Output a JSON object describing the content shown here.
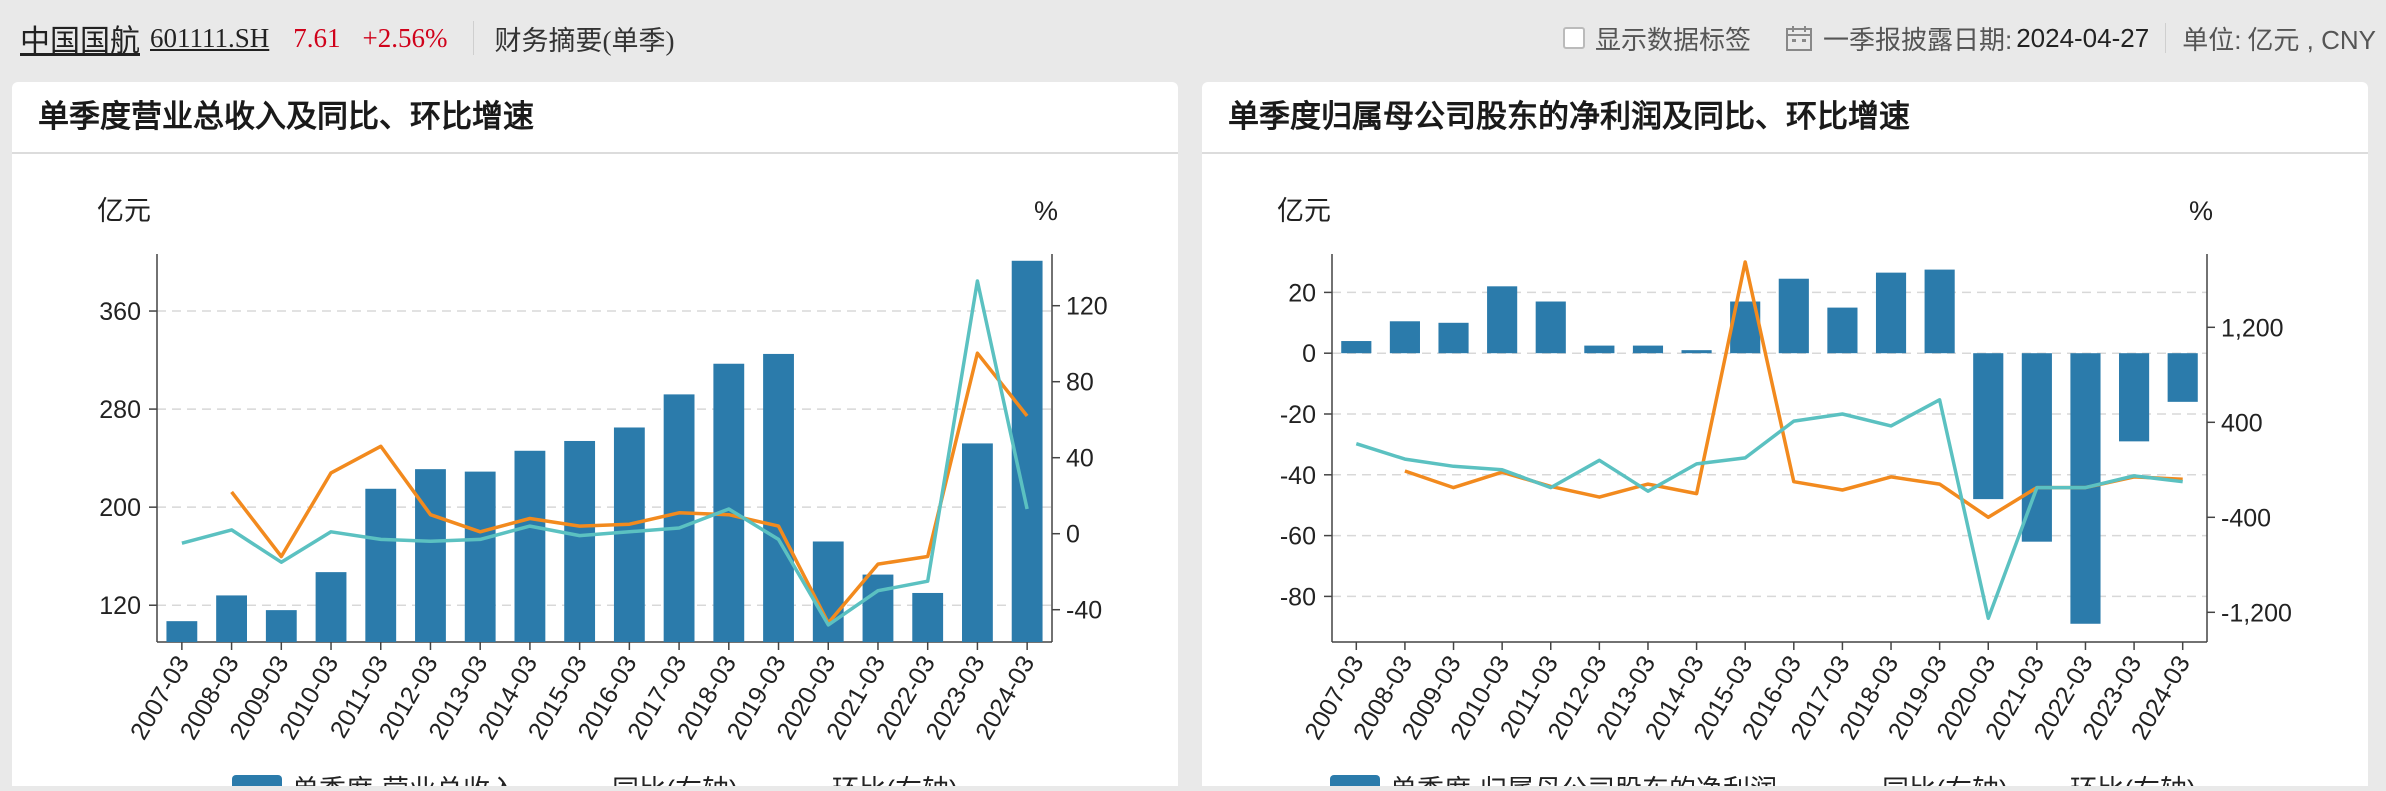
{
  "header": {
    "stock_name": "中国国航",
    "stock_code": "601111.SH",
    "price": "7.61",
    "change": "+2.56%",
    "summary": "财务摘要(单季)",
    "show_labels": "显示数据标签",
    "disclosure_label": "一季报披露日期:",
    "disclosure_date": "2024-04-27",
    "unit_label": "单位:",
    "unit_value": "亿元 , CNY"
  },
  "colors": {
    "bar": "#2b7bab",
    "yoy": "#f28a1e",
    "qoq": "#5bc1c1"
  },
  "chart_data": [
    {
      "type": "bar",
      "title": "单季度营业总收入及同比、环比增速",
      "left_axis_unit": "亿元",
      "right_axis_unit": "%",
      "categories": [
        "2007-03",
        "2008-03",
        "2009-03",
        "2010-03",
        "2011-03",
        "2012-03",
        "2013-03",
        "2014-03",
        "2015-03",
        "2016-03",
        "2017-03",
        "2018-03",
        "2019-03",
        "2020-03",
        "2021-03",
        "2022-03",
        "2023-03",
        "2024-03"
      ],
      "ylim_left": [
        90,
        400
      ],
      "yticks_left": [
        120,
        200,
        280,
        360
      ],
      "ylim_right": [
        -57,
        143
      ],
      "yticks_right": [
        -40,
        0,
        40,
        80,
        120
      ],
      "grid": true,
      "legend_position": "bottom",
      "series": [
        {
          "name": "单季度·营业总收入",
          "axis": "left",
          "type": "bar",
          "values": [
            107,
            128,
            116,
            147,
            215,
            231,
            229,
            246,
            254,
            265,
            292,
            317,
            325,
            172,
            145,
            130,
            252,
            401
          ]
        },
        {
          "name": "同比(右轴)",
          "axis": "right",
          "type": "line",
          "color_key": "yoy",
          "values": [
            null,
            22,
            -12,
            32,
            46,
            10,
            1,
            8,
            4,
            5,
            11,
            10,
            4,
            -47,
            -16,
            -12,
            95,
            62
          ]
        },
        {
          "name": "环比(右轴)",
          "axis": "right",
          "type": "line",
          "color_key": "qoq",
          "values": [
            -5,
            2,
            -15,
            1,
            -3,
            -4,
            -3,
            4,
            -1,
            1,
            3,
            13,
            -3,
            -48,
            -30,
            -25,
            133,
            13
          ]
        }
      ]
    },
    {
      "type": "bar",
      "title": "单季度归属母公司股东的净利润及同比、环比增速",
      "left_axis_unit": "亿元",
      "right_axis_unit": "%",
      "categories": [
        "2007-03",
        "2008-03",
        "2009-03",
        "2010-03",
        "2011-03",
        "2012-03",
        "2013-03",
        "2014-03",
        "2015-03",
        "2016-03",
        "2017-03",
        "2018-03",
        "2019-03",
        "2020-03",
        "2021-03",
        "2022-03",
        "2023-03",
        "2024-03"
      ],
      "ylim_left": [
        -95,
        30
      ],
      "yticks_left": [
        -80,
        -60,
        -40,
        -20,
        0,
        20
      ],
      "ylim_right": [
        -1450,
        1750
      ],
      "yticks_right": [
        -1200,
        -400,
        400,
        1200
      ],
      "grid": true,
      "legend_position": "bottom",
      "series": [
        {
          "name": "单季度·归属母公司股东的净利润",
          "axis": "left",
          "type": "bar",
          "values": [
            4,
            10.5,
            10,
            22,
            17,
            2.5,
            2.5,
            1,
            17,
            24.5,
            15,
            26.5,
            27.5,
            -48,
            -62,
            -89,
            -29,
            -16
          ]
        },
        {
          "name": "同比(右轴)",
          "axis": "right",
          "type": "line",
          "color_key": "yoy",
          "values": [
            null,
            -10,
            -150,
            -20,
            -140,
            -230,
            -120,
            -200,
            1750,
            -100,
            -170,
            -60,
            -120,
            -400,
            -150,
            -150,
            -60,
            -80
          ]
        },
        {
          "name": "环比(右轴)",
          "axis": "right",
          "type": "line",
          "color_key": "qoq",
          "values": [
            220,
            90,
            30,
            0,
            -150,
            80,
            -180,
            50,
            100,
            410,
            470,
            370,
            590,
            -1250,
            -150,
            -150,
            -50,
            -100
          ]
        }
      ]
    }
  ]
}
